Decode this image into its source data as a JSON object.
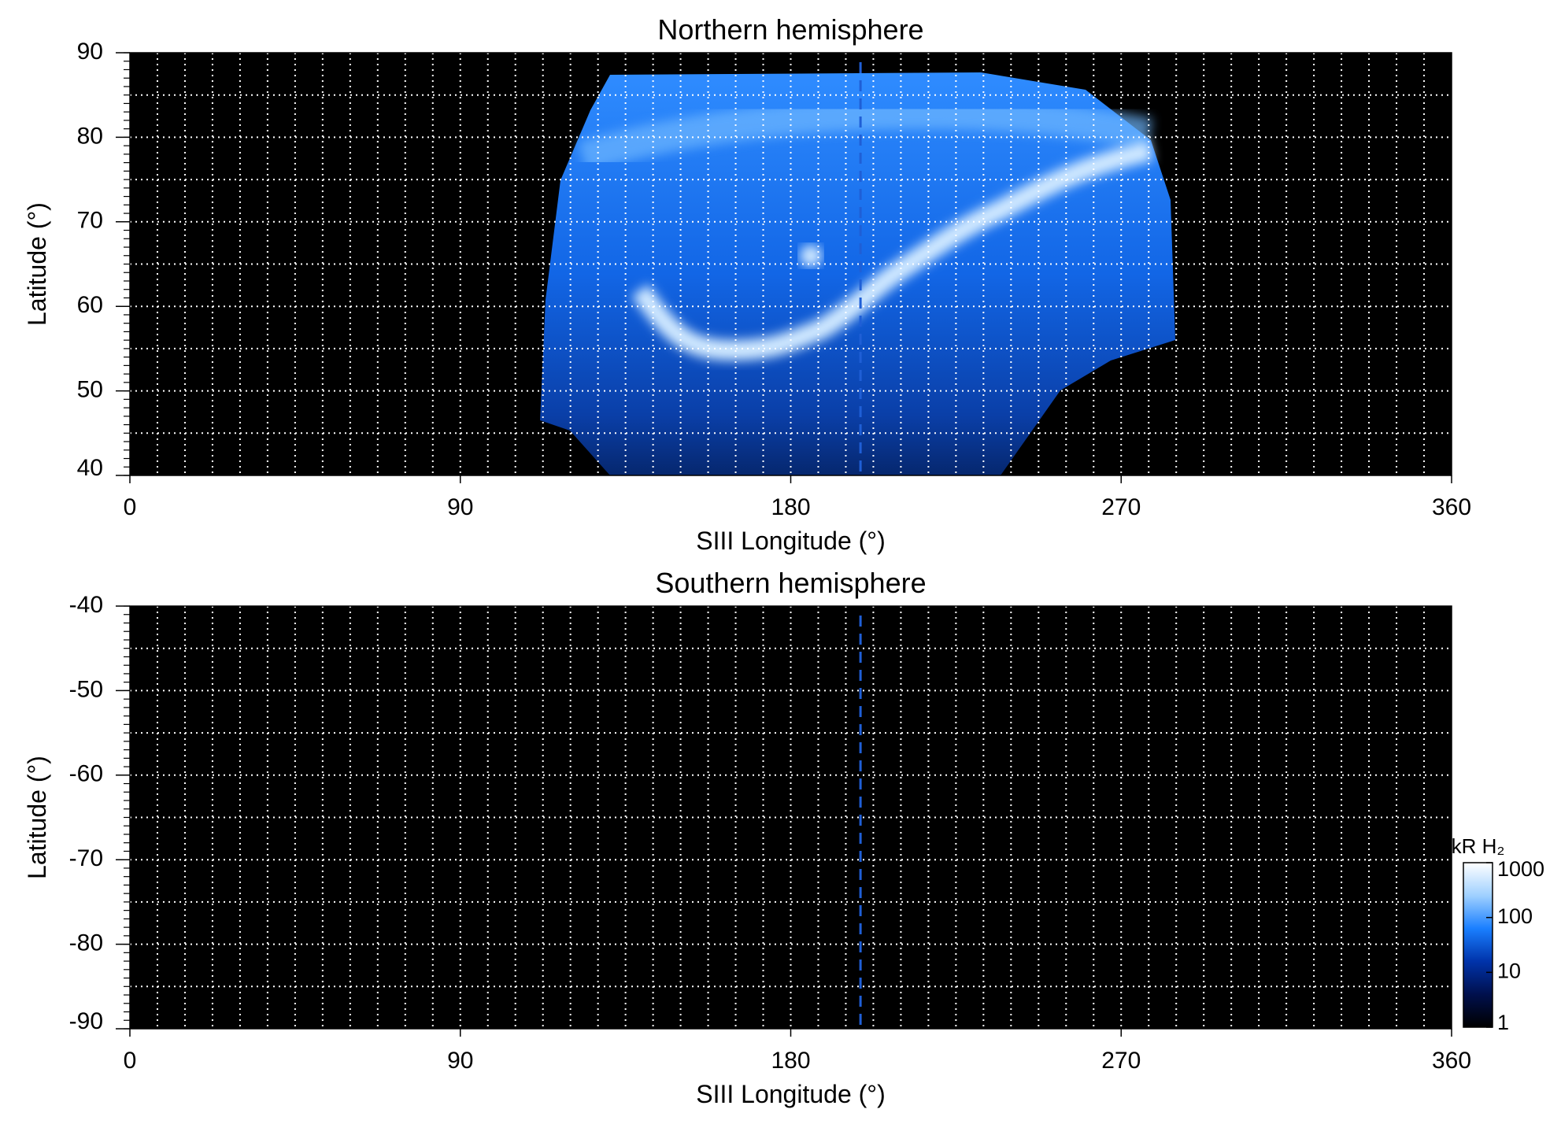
{
  "chart_data": [
    {
      "type": "heatmap",
      "title": "Northern hemisphere",
      "x_label": "SIII Longitude (°)",
      "y_label": "Latitude (°)",
      "xlim": [
        0,
        360
      ],
      "xticks": [
        0,
        90,
        180,
        270,
        360
      ],
      "ylim": [
        40,
        90
      ],
      "yticks": [
        40,
        50,
        60,
        70,
        80,
        90
      ],
      "xgrid_step": 7.5,
      "ygrid_step": 5,
      "grid": true,
      "vline": 199,
      "vline_color": "#1f5fd6"
    },
    {
      "type": "heatmap",
      "title": "Southern hemisphere",
      "x_label": "SIII Longitude (°)",
      "y_label": "Latitude (°)",
      "xlim": [
        0,
        360
      ],
      "xticks": [
        0,
        90,
        180,
        270,
        360
      ],
      "ylim": [
        -90,
        -40
      ],
      "yticks": [
        -90,
        -80,
        -70,
        -60,
        -50,
        -40
      ],
      "xgrid_step": 7.5,
      "ygrid_step": 5,
      "grid": true,
      "vline": 199,
      "vline_color": "#1f5fd6",
      "colorbar": {
        "label": "kR H₂",
        "scale": "log",
        "lim": [
          1,
          1000
        ],
        "ticks": [
          1,
          10,
          100,
          1000
        ],
        "colors": [
          "#000000",
          "#00104d",
          "#0033aa",
          "#1a7fff",
          "#9fd0ff",
          "#ffffff"
        ]
      }
    }
  ]
}
